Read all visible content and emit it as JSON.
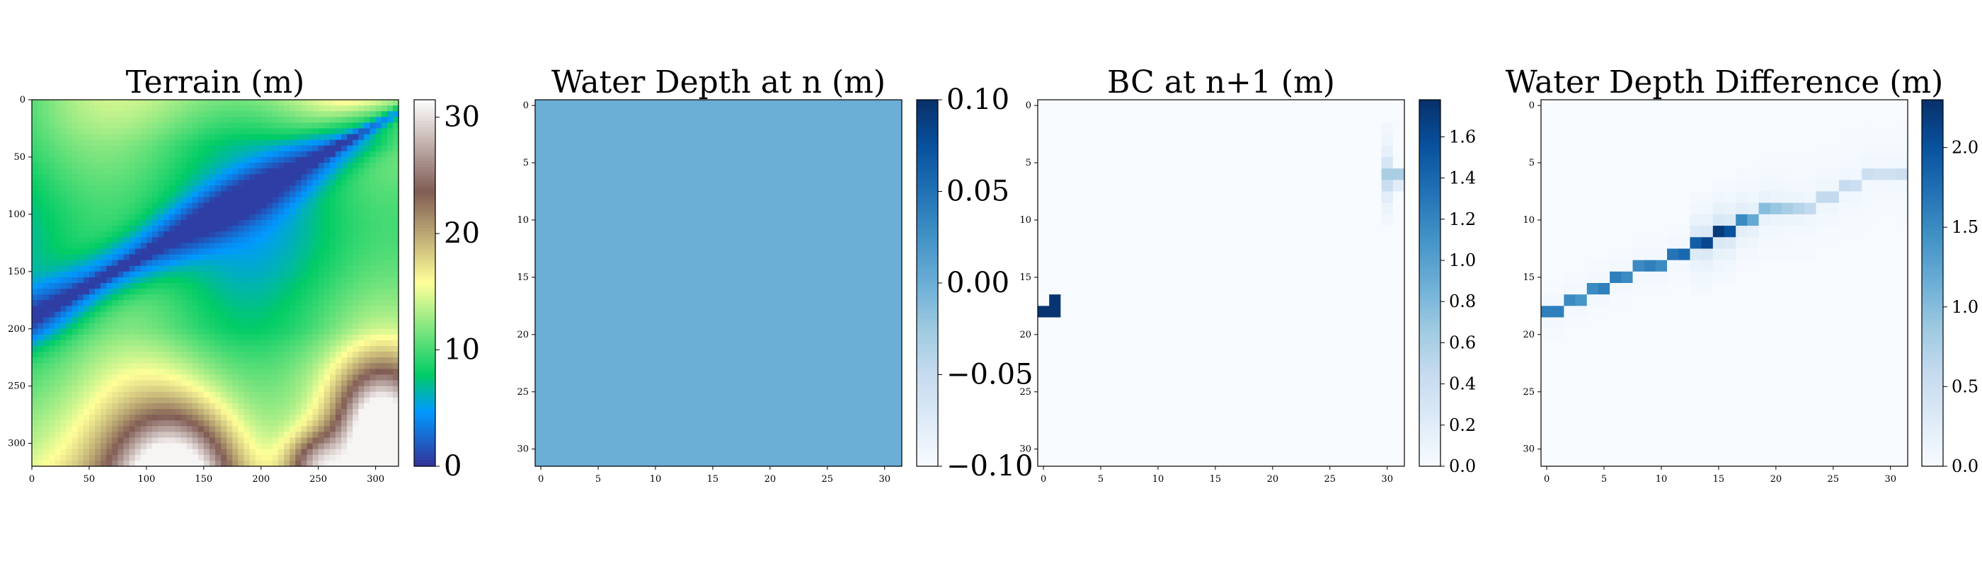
{
  "figure": {
    "background": "#ffffff"
  },
  "chart_data": [
    {
      "type": "heatmap",
      "title": "Terrain (m)",
      "colormap": "terrain",
      "grid": false,
      "xlim": [
        0,
        320
      ],
      "ylim": [
        320,
        0
      ],
      "x_ticks": [
        "0",
        "50",
        "100",
        "150",
        "200",
        "250",
        "300"
      ],
      "y_ticks": [
        "0",
        "50",
        "100",
        "150",
        "200",
        "250",
        "300"
      ],
      "colorbar": {
        "min": 0,
        "max": 31.5,
        "ticks": [
          "0",
          "10",
          "20",
          "30"
        ],
        "tick_values": [
          0,
          10,
          20,
          30
        ]
      },
      "description_values": {
        "channel_min": 1.5,
        "plain": 10,
        "hills_max": 30
      }
    },
    {
      "type": "heatmap",
      "title": "Water Depth at n (m)",
      "colormap": "Blues",
      "grid": false,
      "xlim": [
        0,
        32
      ],
      "ylim": [
        32,
        0
      ],
      "x_ticks": [
        "0",
        "5",
        "10",
        "15",
        "20",
        "25",
        "30"
      ],
      "y_ticks": [
        "0",
        "5",
        "10",
        "15",
        "20",
        "25",
        "30"
      ],
      "colorbar": {
        "min": -0.1,
        "max": 0.1,
        "ticks": [
          "−0.10",
          "−0.05",
          "0.00",
          "0.05",
          "0.10"
        ],
        "tick_values": [
          -0.1,
          -0.05,
          0,
          0.05,
          0.1
        ]
      },
      "uniform_value": 0.0
    },
    {
      "type": "heatmap",
      "title": "BC at n+1 (m)",
      "colormap": "Blues",
      "grid": false,
      "xlim": [
        0,
        32
      ],
      "ylim": [
        32,
        0
      ],
      "x_ticks": [
        "0",
        "5",
        "10",
        "15",
        "20",
        "25",
        "30"
      ],
      "y_ticks": [
        "0",
        "5",
        "10",
        "15",
        "20",
        "25",
        "30"
      ],
      "colorbar": {
        "min": 0,
        "max": 1.78,
        "ticks": [
          "0.0",
          "0.2",
          "0.4",
          "0.6",
          "0.8",
          "1.0",
          "1.2",
          "1.4",
          "1.6"
        ],
        "tick_values": [
          0,
          0.2,
          0.4,
          0.6,
          0.8,
          1.0,
          1.2,
          1.4,
          1.6
        ]
      },
      "cells": [
        {
          "row": 17,
          "col": 1,
          "value": 1.75
        },
        {
          "row": 18,
          "col": 0,
          "value": 1.75
        },
        {
          "row": 18,
          "col": 1,
          "value": 1.75
        },
        {
          "row": 2,
          "col": 30,
          "value": 0.05
        },
        {
          "row": 3,
          "col": 30,
          "value": 0.08
        },
        {
          "row": 4,
          "col": 30,
          "value": 0.15
        },
        {
          "row": 5,
          "col": 30,
          "value": 0.3
        },
        {
          "row": 6,
          "col": 30,
          "value": 0.6
        },
        {
          "row": 6,
          "col": 31,
          "value": 0.6
        },
        {
          "row": 7,
          "col": 30,
          "value": 0.4
        },
        {
          "row": 7,
          "col": 31,
          "value": 0.2
        },
        {
          "row": 8,
          "col": 30,
          "value": 0.2
        },
        {
          "row": 9,
          "col": 30,
          "value": 0.1
        },
        {
          "row": 10,
          "col": 30,
          "value": 0.05
        }
      ]
    },
    {
      "type": "heatmap",
      "title": "Water Depth Difference (m)",
      "colormap": "Blues",
      "grid": false,
      "xlim": [
        0,
        32
      ],
      "ylim": [
        32,
        0
      ],
      "x_ticks": [
        "0",
        "5",
        "10",
        "15",
        "20",
        "25",
        "30"
      ],
      "y_ticks": [
        "0",
        "5",
        "10",
        "15",
        "20",
        "25",
        "30"
      ],
      "colorbar": {
        "min": 0,
        "max": 2.3,
        "ticks": [
          "0.0",
          "0.5",
          "1.0",
          "1.5",
          "2.0"
        ],
        "tick_values": [
          0,
          0.5,
          1.0,
          1.5,
          2.0
        ]
      },
      "channel": [
        {
          "col": 0,
          "row": 18,
          "value": 1.6
        },
        {
          "col": 1,
          "row": 18,
          "value": 1.6
        },
        {
          "col": 2,
          "row": 17,
          "value": 1.5
        },
        {
          "col": 3,
          "row": 17,
          "value": 1.4
        },
        {
          "col": 4,
          "row": 16,
          "value": 1.5
        },
        {
          "col": 5,
          "row": 16,
          "value": 1.6
        },
        {
          "col": 6,
          "row": 15,
          "value": 1.6
        },
        {
          "col": 7,
          "row": 15,
          "value": 1.5
        },
        {
          "col": 8,
          "row": 14,
          "value": 1.5
        },
        {
          "col": 9,
          "row": 14,
          "value": 1.6
        },
        {
          "col": 10,
          "row": 14,
          "value": 1.5
        },
        {
          "col": 11,
          "row": 13,
          "value": 1.7
        },
        {
          "col": 12,
          "row": 13,
          "value": 1.8
        },
        {
          "col": 13,
          "row": 12,
          "value": 1.9
        },
        {
          "col": 14,
          "row": 12,
          "value": 2.1
        },
        {
          "col": 15,
          "row": 11,
          "value": 2.2
        },
        {
          "col": 16,
          "row": 11,
          "value": 2.0
        },
        {
          "col": 17,
          "row": 10,
          "value": 1.5
        },
        {
          "col": 18,
          "row": 10,
          "value": 1.2
        },
        {
          "col": 19,
          "row": 9,
          "value": 1.0
        },
        {
          "col": 20,
          "row": 9,
          "value": 0.9
        },
        {
          "col": 21,
          "row": 9,
          "value": 0.8
        },
        {
          "col": 22,
          "row": 9,
          "value": 0.7
        },
        {
          "col": 23,
          "row": 9,
          "value": 0.6
        },
        {
          "col": 24,
          "row": 8,
          "value": 0.6
        },
        {
          "col": 25,
          "row": 8,
          "value": 0.6
        },
        {
          "col": 26,
          "row": 7,
          "value": 0.55
        },
        {
          "col": 27,
          "row": 7,
          "value": 0.5
        },
        {
          "col": 28,
          "row": 6,
          "value": 0.5
        },
        {
          "col": 29,
          "row": 6,
          "value": 0.45
        },
        {
          "col": 30,
          "row": 6,
          "value": 0.45
        },
        {
          "col": 31,
          "row": 6,
          "value": 0.5
        }
      ]
    }
  ]
}
